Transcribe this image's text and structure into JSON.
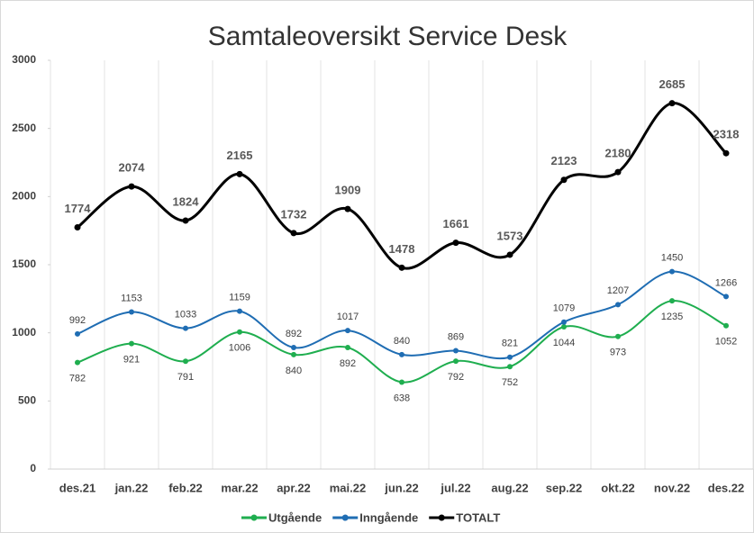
{
  "chart_data": {
    "type": "line",
    "title": "Samtaleoversikt Service Desk",
    "categories": [
      "des.21",
      "jan.22",
      "feb.22",
      "mar.22",
      "apr.22",
      "mai.22",
      "jun.22",
      "jul.22",
      "aug.22",
      "sep.22",
      "okt.22",
      "nov.22",
      "des.22"
    ],
    "series": [
      {
        "name": "Utgående",
        "color": "#1fae4f",
        "values": [
          782,
          921,
          791,
          1006,
          840,
          892,
          638,
          792,
          752,
          1044,
          973,
          1235,
          1052
        ]
      },
      {
        "name": "Inngående",
        "color": "#1f6db3",
        "values": [
          992,
          1153,
          1033,
          1159,
          892,
          1017,
          840,
          869,
          821,
          1079,
          1207,
          1450,
          1266
        ]
      },
      {
        "name": "TOTALT",
        "color": "#000000",
        "values": [
          1774,
          2074,
          1824,
          2165,
          1732,
          1909,
          1478,
          1661,
          1573,
          2123,
          2180,
          2685,
          2318
        ]
      }
    ],
    "ylim": [
      0,
      3000
    ],
    "yticks": [
      0,
      500,
      1000,
      1500,
      2000,
      2500,
      3000
    ],
    "legend": "bottom",
    "smooth": true
  }
}
